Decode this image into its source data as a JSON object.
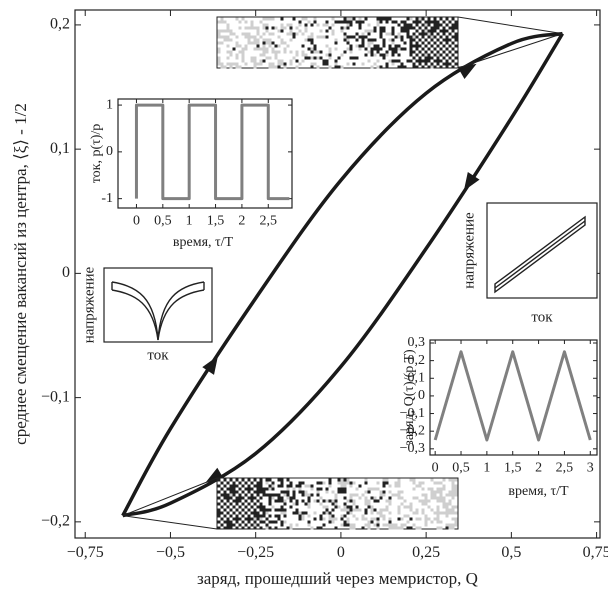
{
  "chart_data": [
    {
      "type": "line",
      "xlabel": "заряд, прошедший через мемристор, Q",
      "ylabel": "среднее смещение вакансий из центра, ⟨ξ⟩ - 1/2",
      "xlim": [
        -0.78,
        0.76
      ],
      "ylim": [
        -0.213,
        0.212
      ],
      "xticks": [
        {
          "value": -0.75,
          "label": "−0,75"
        },
        {
          "value": -0.5,
          "label": "−0,5"
        },
        {
          "value": -0.25,
          "label": "−0,25"
        },
        0,
        {
          "value": 0.25,
          "label": "0,25"
        },
        {
          "value": 0.5,
          "label": "0,5"
        },
        {
          "value": 0.75,
          "label": "0,75"
        }
      ],
      "yticks": [
        {
          "value": -0.2,
          "label": "−0,2"
        },
        {
          "value": -0.1,
          "label": "−0,1"
        },
        0,
        {
          "value": 0.1,
          "label": "0,1"
        },
        {
          "value": 0.2,
          "label": "0,2"
        }
      ],
      "series": [
        {
          "color": "#1a1a1a",
          "x": [
            -0.64,
            -0.5,
            -0.25,
            0,
            0.25,
            0.5,
            0.65
          ],
          "values": [
            -0.195,
            -0.125,
            -0.02,
            0.075,
            0.145,
            0.185,
            0.193
          ]
        },
        {
          "color": "#1a1a1a",
          "x": [
            0.65,
            0.5,
            0.25,
            0,
            -0.25,
            -0.5,
            -0.64
          ],
          "values": [
            0.193,
            0.125,
            0.02,
            -0.075,
            -0.145,
            -0.185,
            -0.195
          ]
        }
      ]
    },
    {
      "type": "line",
      "xlabel": "время, τ/T",
      "ylabel": "ток, p(τ)/p",
      "xlim": [
        -0.35,
        2.95
      ],
      "ylim": [
        -1.2,
        1.13
      ],
      "xticks": [
        0,
        {
          "value": 0.5,
          "label": "0,5"
        },
        1,
        {
          "value": 1.5,
          "label": "1,5"
        },
        2,
        {
          "value": 2.5,
          "label": "2,5"
        }
      ],
      "yticks": [
        -1,
        0,
        1
      ],
      "series": [
        {
          "color": "#808080",
          "x": [
            0,
            0,
            0.5,
            0.5,
            1,
            1,
            1.5,
            1.5,
            2,
            2,
            2.5,
            2.5,
            2.9
          ],
          "values": [
            -1,
            1,
            1,
            -1,
            -1,
            1,
            1,
            -1,
            -1,
            1,
            1,
            -1,
            -1
          ]
        }
      ]
    },
    {
      "type": "line",
      "xlabel": "время, τ/T",
      "ylabel": "заряд, Q(τ)/(p T)",
      "xlim": [
        -0.1,
        3.13
      ],
      "ylim": [
        -0.335,
        0.317
      ],
      "xticks": [
        0,
        {
          "value": 0.5,
          "label": "0,5"
        },
        1,
        {
          "value": 1.5,
          "label": "1,5"
        },
        2,
        {
          "value": 2.5,
          "label": "2,5"
        },
        3
      ],
      "yticks": [
        {
          "value": -0.3,
          "label": "−0,3"
        },
        {
          "value": -0.2,
          "label": "−0,2"
        },
        {
          "value": -0.1,
          "label": "−0,1"
        },
        0,
        {
          "value": 0.1,
          "label": "0,1"
        },
        {
          "value": 0.2,
          "label": "0,2"
        },
        {
          "value": 0.3,
          "label": "0,3"
        }
      ],
      "series": [
        {
          "color": "#808080",
          "x": [
            0,
            0.5,
            1,
            1.5,
            2,
            2.5,
            3
          ],
          "values": [
            -0.25,
            0.25,
            -0.25,
            0.25,
            -0.25,
            0.25,
            -0.25
          ]
        }
      ]
    },
    {
      "type": "schematic",
      "xlabel": "ток",
      "ylabel": "напряжение",
      "shape": "cusp"
    },
    {
      "type": "schematic",
      "xlabel": "ток",
      "ylabel": "напряжение",
      "shape": "loop"
    }
  ]
}
